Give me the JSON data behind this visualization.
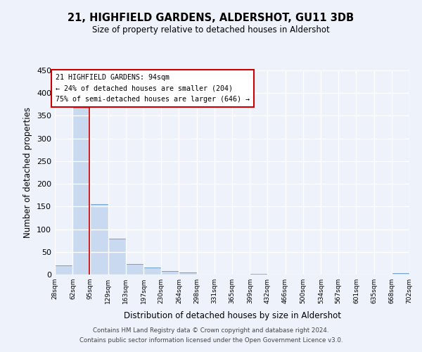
{
  "title": "21, HIGHFIELD GARDENS, ALDERSHOT, GU11 3DB",
  "subtitle": "Size of property relative to detached houses in Aldershot",
  "xlabel": "Distribution of detached houses by size in Aldershot",
  "ylabel": "Number of detached properties",
  "bin_edges": [
    28,
    62,
    95,
    129,
    163,
    197,
    230,
    264,
    298,
    331,
    365,
    399,
    432,
    466,
    500,
    534,
    567,
    601,
    635,
    668,
    702
  ],
  "bin_labels": [
    "28sqm",
    "62sqm",
    "95sqm",
    "129sqm",
    "163sqm",
    "197sqm",
    "230sqm",
    "264sqm",
    "298sqm",
    "331sqm",
    "365sqm",
    "399sqm",
    "432sqm",
    "466sqm",
    "500sqm",
    "534sqm",
    "567sqm",
    "601sqm",
    "635sqm",
    "668sqm",
    "702sqm"
  ],
  "counts": [
    20,
    368,
    155,
    79,
    23,
    15,
    8,
    4,
    0,
    0,
    0,
    2,
    0,
    0,
    0,
    0,
    0,
    0,
    0,
    3
  ],
  "bar_color": "#c9d9f0",
  "bar_edge_color": "#6fa0cc",
  "property_size": 94,
  "vline_color": "#cc0000",
  "ylim": [
    0,
    450
  ],
  "yticks": [
    0,
    50,
    100,
    150,
    200,
    250,
    300,
    350,
    400,
    450
  ],
  "annotation_title": "21 HIGHFIELD GARDENS: 94sqm",
  "annotation_line1": "← 24% of detached houses are smaller (204)",
  "annotation_line2": "75% of semi-detached houses are larger (646) →",
  "annotation_box_color": "#ffffff",
  "annotation_box_edge": "#cc0000",
  "footer1": "Contains HM Land Registry data © Crown copyright and database right 2024.",
  "footer2": "Contains public sector information licensed under the Open Government Licence v3.0.",
  "bg_color": "#eef2fb",
  "grid_color": "#ffffff"
}
